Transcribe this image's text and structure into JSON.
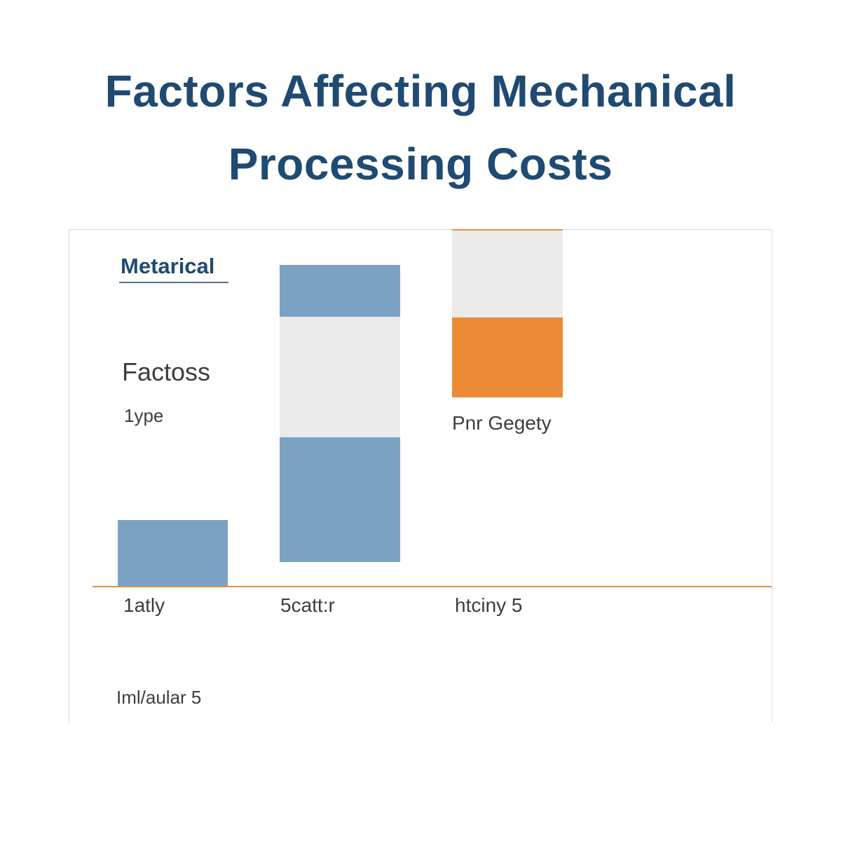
{
  "chart_data": {
    "type": "bar",
    "title": [
      "Factors Affecting Mechanical",
      "Processing Costs"
    ],
    "legend_title": "Metarical",
    "side_labels": {
      "factors": "Factoss",
      "type": "1ype",
      "bar_annotation": "Pnr Gegety"
    },
    "categories": [
      "1atly",
      "5catt:r",
      "htciny 5"
    ],
    "footer_label": "Iml/aular 5",
    "stacks": [
      {
        "category": "1atly",
        "segments": [
          {
            "color": "blue",
            "from": 0,
            "to": 95
          }
        ]
      },
      {
        "category": "5catt:r",
        "segments": [
          {
            "color": "blue",
            "from": 35,
            "to": 213
          },
          {
            "color": "gray",
            "from": 213,
            "to": 385
          },
          {
            "color": "blue",
            "from": 385,
            "to": 459
          }
        ]
      },
      {
        "category": "htciny 5",
        "segments": [
          {
            "color": "orange",
            "from": 270,
            "to": 384
          },
          {
            "color": "gray",
            "from": 384,
            "to": 510
          }
        ]
      }
    ],
    "ylim": [
      0,
      510
    ],
    "grid": false
  },
  "colors": {
    "title": "#1f4a72",
    "blue": "#7ba2c2",
    "gray": "#ebebeb",
    "orange": "#ec8a35",
    "baseline": "#e5913f",
    "legend_underline": "#5a6f86"
  }
}
